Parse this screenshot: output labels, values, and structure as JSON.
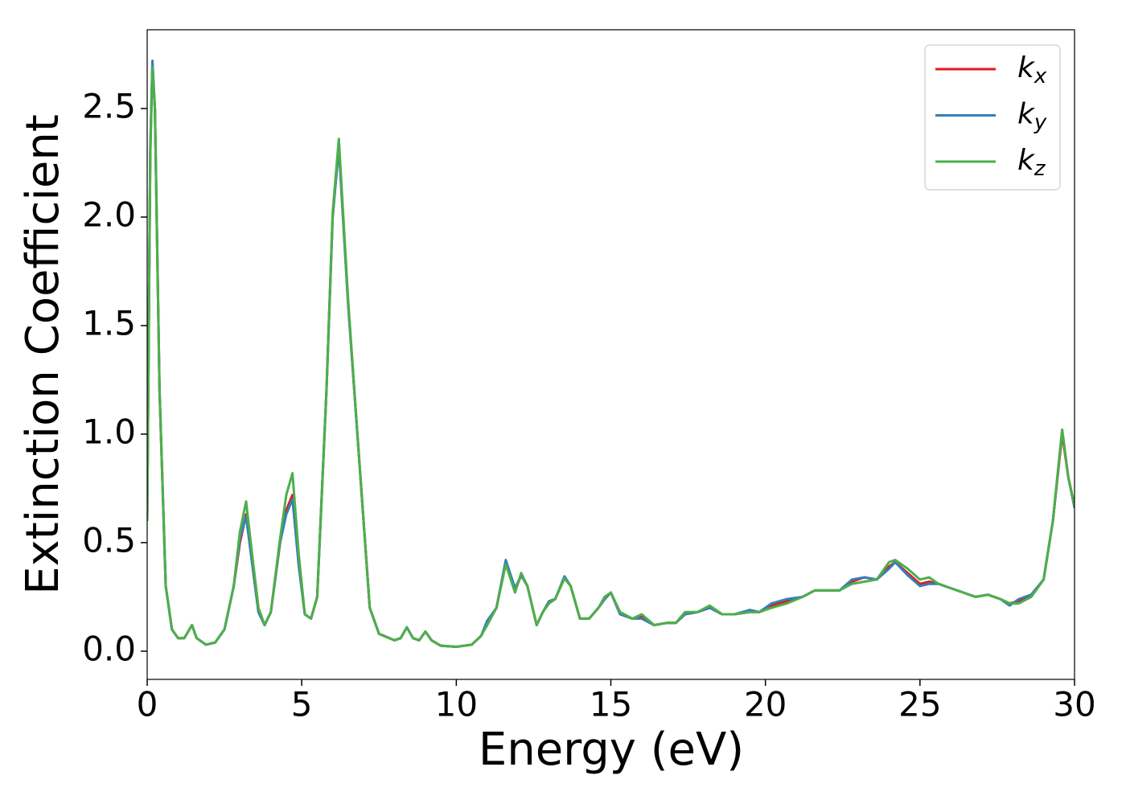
{
  "chart_data": {
    "type": "line",
    "x_label": "Energy (eV)",
    "y_label": "Extinction Coefficient",
    "x": [
      0,
      0.1,
      0.17,
      0.25,
      0.4,
      0.6,
      0.8,
      1.0,
      1.2,
      1.45,
      1.6,
      1.9,
      2.2,
      2.5,
      2.8,
      3.0,
      3.2,
      3.4,
      3.6,
      3.8,
      4.0,
      4.3,
      4.5,
      4.7,
      4.9,
      5.1,
      5.3,
      5.5,
      5.8,
      6.0,
      6.2,
      6.5,
      6.8,
      7.0,
      7.2,
      7.5,
      8.0,
      8.2,
      8.4,
      8.6,
      8.8,
      9.0,
      9.2,
      9.5,
      10.0,
      10.5,
      10.8,
      11.0,
      11.3,
      11.6,
      11.9,
      12.1,
      12.3,
      12.6,
      12.8,
      13.0,
      13.2,
      13.5,
      13.7,
      14.0,
      14.3,
      14.6,
      14.8,
      15.0,
      15.3,
      15.7,
      16.0,
      16.4,
      16.8,
      17.1,
      17.4,
      17.8,
      18.2,
      18.6,
      19.0,
      19.5,
      19.8,
      20.2,
      20.7,
      21.2,
      21.6,
      22.0,
      22.4,
      22.8,
      23.2,
      23.6,
      24.0,
      24.2,
      24.6,
      25.0,
      25.3,
      25.6,
      26.0,
      26.4,
      26.8,
      27.2,
      27.6,
      27.9,
      28.2,
      28.6,
      29.0,
      29.3,
      29.6,
      29.8,
      30.0
    ],
    "series": [
      {
        "name": "kx",
        "color": "#e41a1c",
        "values": [
          0.6,
          2.3,
          2.7,
          2.5,
          1.2,
          0.3,
          0.1,
          0.06,
          0.06,
          0.12,
          0.06,
          0.03,
          0.04,
          0.1,
          0.3,
          0.5,
          0.63,
          0.4,
          0.18,
          0.12,
          0.18,
          0.5,
          0.65,
          0.72,
          0.4,
          0.17,
          0.15,
          0.25,
          1.2,
          2.0,
          2.33,
          1.6,
          1.0,
          0.6,
          0.2,
          0.08,
          0.05,
          0.06,
          0.11,
          0.06,
          0.05,
          0.09,
          0.05,
          0.025,
          0.02,
          0.03,
          0.07,
          0.13,
          0.2,
          0.41,
          0.28,
          0.35,
          0.3,
          0.12,
          0.18,
          0.23,
          0.24,
          0.34,
          0.3,
          0.15,
          0.15,
          0.2,
          0.24,
          0.27,
          0.17,
          0.15,
          0.16,
          0.12,
          0.13,
          0.13,
          0.17,
          0.18,
          0.2,
          0.17,
          0.17,
          0.18,
          0.18,
          0.21,
          0.23,
          0.25,
          0.28,
          0.28,
          0.28,
          0.32,
          0.34,
          0.33,
          0.39,
          0.41,
          0.36,
          0.31,
          0.32,
          0.31,
          0.29,
          0.27,
          0.25,
          0.26,
          0.24,
          0.22,
          0.23,
          0.26,
          0.33,
          0.6,
          1.0,
          0.8,
          0.67
        ]
      },
      {
        "name": "ky",
        "color": "#377eb8",
        "values": [
          0.6,
          2.32,
          2.72,
          2.5,
          1.2,
          0.3,
          0.1,
          0.06,
          0.06,
          0.12,
          0.06,
          0.03,
          0.04,
          0.1,
          0.3,
          0.52,
          0.62,
          0.4,
          0.18,
          0.12,
          0.18,
          0.5,
          0.63,
          0.7,
          0.4,
          0.17,
          0.15,
          0.25,
          1.2,
          2.0,
          2.32,
          1.6,
          1.0,
          0.6,
          0.2,
          0.08,
          0.05,
          0.06,
          0.11,
          0.06,
          0.05,
          0.09,
          0.05,
          0.025,
          0.02,
          0.03,
          0.07,
          0.14,
          0.2,
          0.42,
          0.29,
          0.35,
          0.3,
          0.12,
          0.18,
          0.23,
          0.24,
          0.345,
          0.3,
          0.15,
          0.15,
          0.2,
          0.24,
          0.27,
          0.17,
          0.15,
          0.15,
          0.12,
          0.13,
          0.13,
          0.17,
          0.18,
          0.2,
          0.17,
          0.17,
          0.19,
          0.18,
          0.22,
          0.24,
          0.25,
          0.28,
          0.28,
          0.28,
          0.33,
          0.34,
          0.33,
          0.38,
          0.41,
          0.35,
          0.3,
          0.31,
          0.31,
          0.29,
          0.27,
          0.25,
          0.26,
          0.24,
          0.21,
          0.24,
          0.26,
          0.33,
          0.6,
          1.02,
          0.8,
          0.66
        ]
      },
      {
        "name": "kz",
        "color": "#4daf4a",
        "values": [
          0.6,
          2.28,
          2.69,
          2.5,
          1.2,
          0.3,
          0.1,
          0.06,
          0.06,
          0.12,
          0.06,
          0.03,
          0.04,
          0.1,
          0.3,
          0.55,
          0.69,
          0.44,
          0.2,
          0.12,
          0.18,
          0.52,
          0.72,
          0.82,
          0.45,
          0.17,
          0.15,
          0.25,
          1.2,
          2.02,
          2.36,
          1.62,
          1.0,
          0.6,
          0.2,
          0.08,
          0.05,
          0.06,
          0.11,
          0.06,
          0.05,
          0.09,
          0.05,
          0.025,
          0.02,
          0.03,
          0.07,
          0.12,
          0.2,
          0.4,
          0.27,
          0.36,
          0.3,
          0.12,
          0.18,
          0.22,
          0.24,
          0.335,
          0.3,
          0.15,
          0.15,
          0.2,
          0.25,
          0.27,
          0.18,
          0.15,
          0.17,
          0.12,
          0.13,
          0.13,
          0.18,
          0.18,
          0.21,
          0.17,
          0.17,
          0.18,
          0.18,
          0.2,
          0.22,
          0.25,
          0.28,
          0.28,
          0.28,
          0.31,
          0.32,
          0.33,
          0.41,
          0.42,
          0.38,
          0.33,
          0.34,
          0.31,
          0.29,
          0.27,
          0.25,
          0.26,
          0.24,
          0.22,
          0.22,
          0.25,
          0.33,
          0.6,
          1.02,
          0.8,
          0.67
        ]
      }
    ],
    "xlim": [
      0,
      30
    ],
    "xticks": [
      0,
      5,
      10,
      15,
      20,
      25,
      30
    ],
    "ylim": [
      -0.13,
      2.863
    ],
    "yticks": [
      {
        "value": 0,
        "label": "0.0"
      },
      {
        "value": 0.5,
        "label": "0.5"
      },
      {
        "value": 1,
        "label": "1.0"
      },
      {
        "value": 1.5,
        "label": "1.5"
      },
      {
        "value": 2,
        "label": "2.0"
      },
      {
        "value": 2.5,
        "label": "2.5"
      }
    ],
    "grid": false,
    "legend": "upper right"
  }
}
